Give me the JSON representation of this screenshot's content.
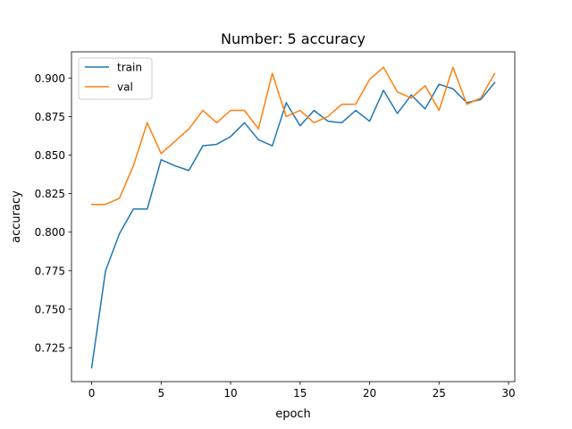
{
  "chart_data": {
    "type": "line",
    "title": "Number: 5 accuracy",
    "xlabel": "epoch",
    "ylabel": "accuracy",
    "xlim": [
      -1.45,
      30.45
    ],
    "ylim": [
      0.703,
      0.917
    ],
    "xticks": [
      0,
      5,
      10,
      15,
      20,
      25,
      30
    ],
    "yticks": [
      0.725,
      0.75,
      0.775,
      0.8,
      0.825,
      0.85,
      0.875,
      0.9
    ],
    "ytick_labels": [
      "0.725",
      "0.750",
      "0.775",
      "0.800",
      "0.825",
      "0.850",
      "0.875",
      "0.900"
    ],
    "grid": false,
    "legend": "top-left",
    "x": [
      0,
      1,
      2,
      3,
      4,
      5,
      6,
      7,
      8,
      9,
      10,
      11,
      12,
      13,
      14,
      15,
      16,
      17,
      18,
      19,
      20,
      21,
      22,
      23,
      24,
      25,
      26,
      27,
      28,
      29
    ],
    "series": [
      {
        "name": "train",
        "color": "#1f77b4",
        "values": [
          0.712,
          0.775,
          0.799,
          0.815,
          0.815,
          0.847,
          0.843,
          0.84,
          0.856,
          0.857,
          0.862,
          0.871,
          0.86,
          0.856,
          0.884,
          0.869,
          0.879,
          0.872,
          0.871,
          0.879,
          0.872,
          0.892,
          0.877,
          0.889,
          0.88,
          0.896,
          0.893,
          0.884,
          0.886,
          0.897
        ]
      },
      {
        "name": "val",
        "color": "#ff7f0e",
        "values": [
          0.818,
          0.818,
          0.822,
          0.843,
          0.871,
          0.851,
          0.859,
          0.867,
          0.879,
          0.871,
          0.879,
          0.879,
          0.867,
          0.903,
          0.875,
          0.879,
          0.871,
          0.875,
          0.883,
          0.883,
          0.899,
          0.907,
          0.891,
          0.887,
          0.895,
          0.879,
          0.907,
          0.883,
          0.887,
          0.903
        ]
      }
    ]
  }
}
